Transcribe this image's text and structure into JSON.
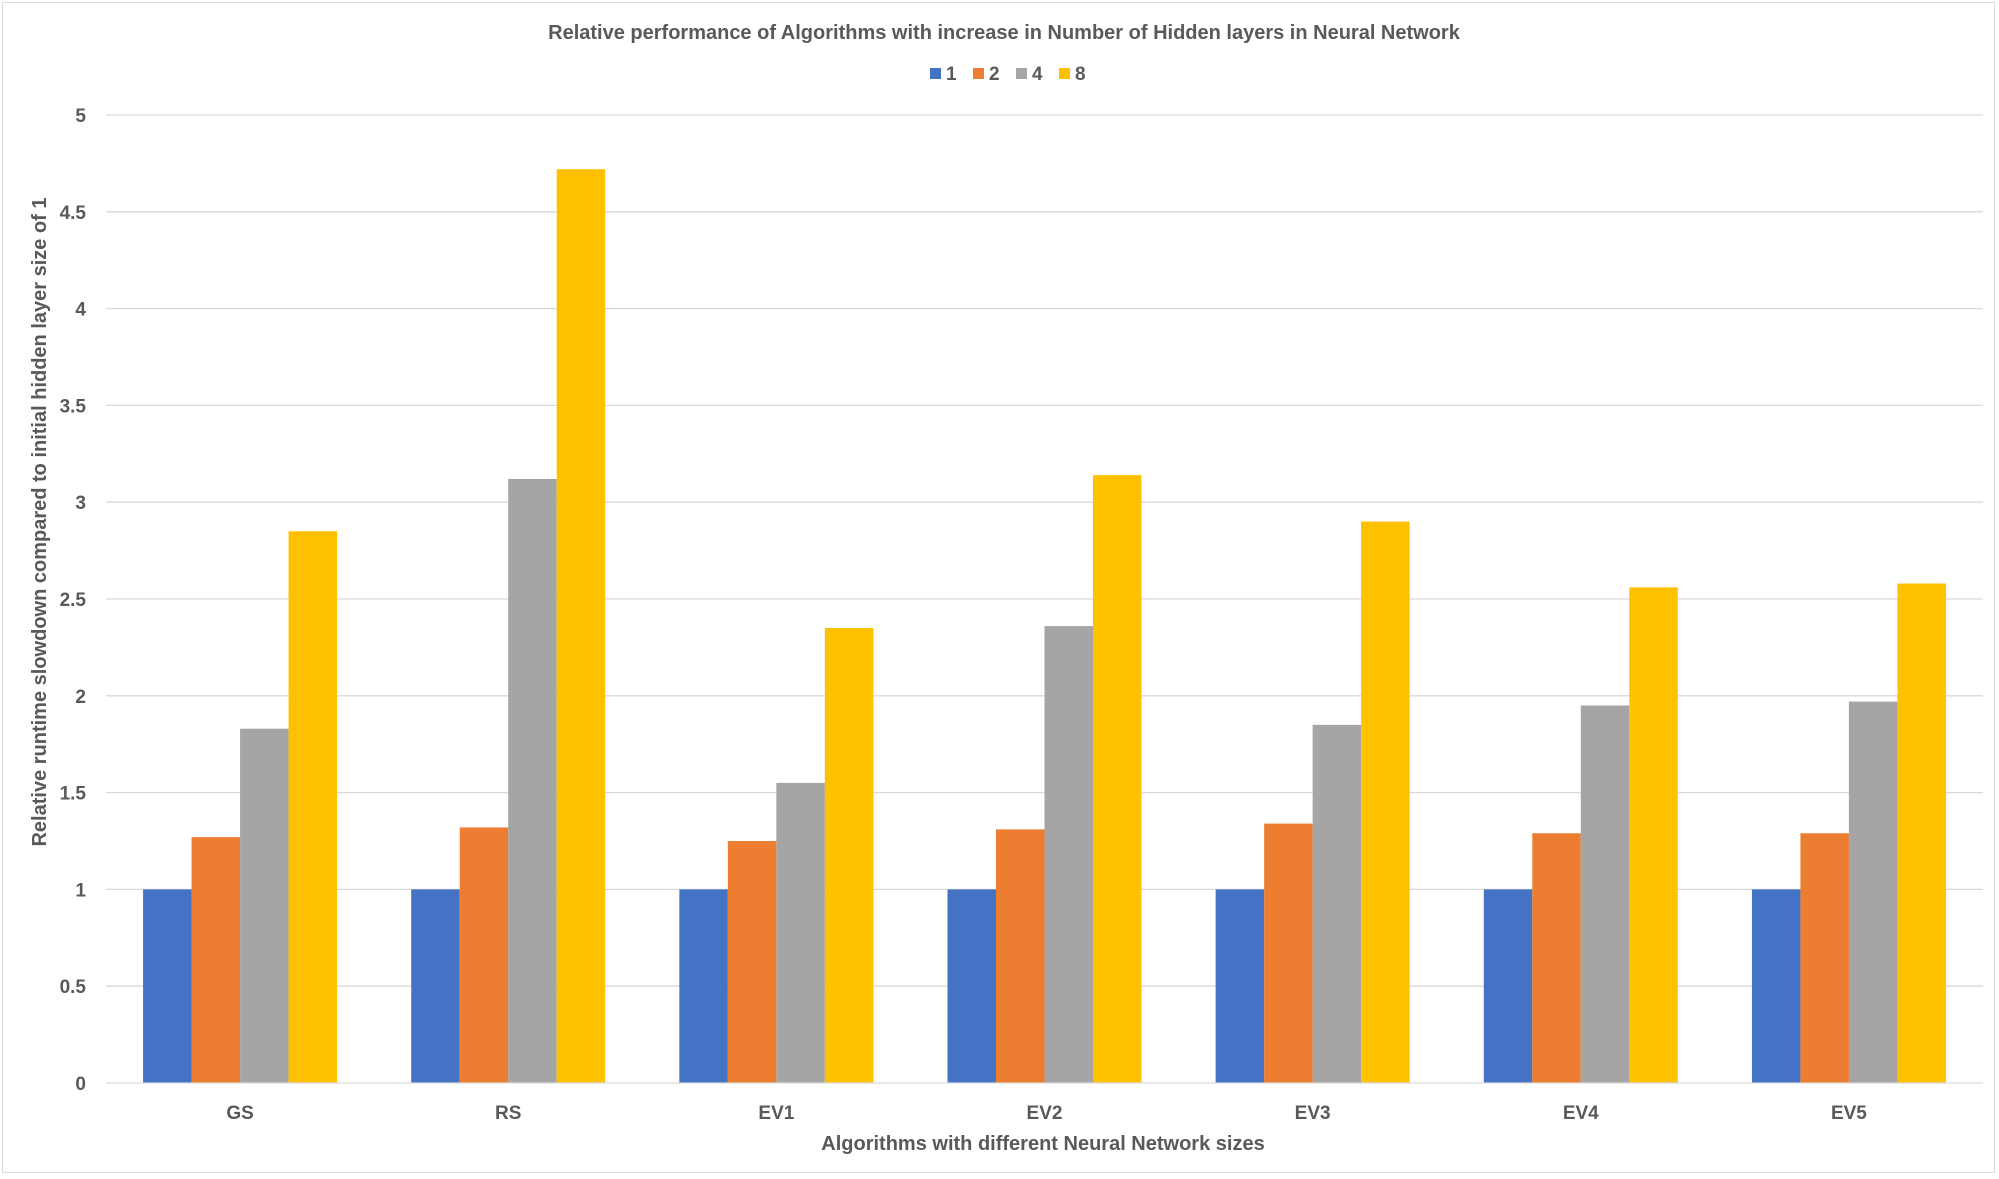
{
  "chart_data": {
    "type": "bar",
    "title": "Relative performance of Algorithms with increase in Number of Hidden layers in Neural Network",
    "xlabel": "Algorithms with different Neural Network sizes",
    "ylabel": "Relative runtime slowdown compared to initial hidden layer size of 1",
    "categories": [
      "GS",
      "RS",
      "EV1",
      "EV2",
      "EV3",
      "EV4",
      "EV5"
    ],
    "ylim": [
      0,
      5
    ],
    "yticks": [
      "0",
      "0.5",
      "1",
      "1.5",
      "2",
      "2.5",
      "3",
      "3.5",
      "4",
      "4.5",
      "5"
    ],
    "legend_position": "top-center",
    "grid": true,
    "series": [
      {
        "name": "1",
        "color": "#4472C4",
        "values": [
          1,
          1,
          1,
          1,
          1,
          1,
          1
        ]
      },
      {
        "name": "2",
        "color": "#ED7D31",
        "values": [
          1.27,
          1.32,
          1.25,
          1.31,
          1.34,
          1.29,
          1.29
        ]
      },
      {
        "name": "4",
        "color": "#A5A5A5",
        "values": [
          1.83,
          3.12,
          1.55,
          2.36,
          1.85,
          1.95,
          1.97
        ]
      },
      {
        "name": "8",
        "color": "#FFC000",
        "values": [
          2.85,
          4.72,
          2.35,
          3.14,
          2.9,
          2.56,
          2.58
        ]
      }
    ]
  }
}
